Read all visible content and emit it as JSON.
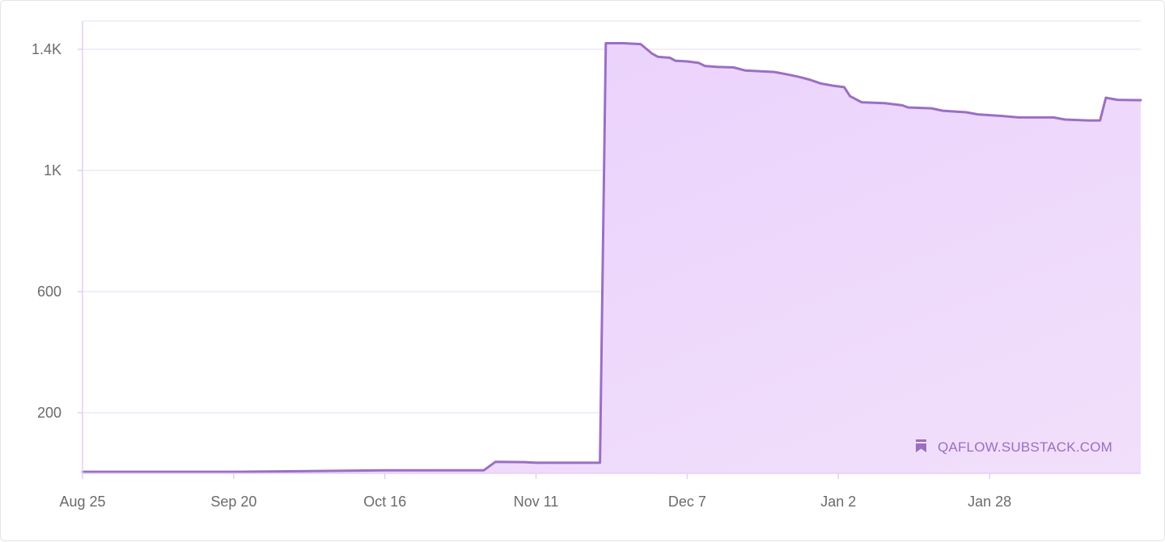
{
  "chart_data": {
    "type": "area",
    "title": "",
    "xlabel": "",
    "ylabel": "",
    "x_ticks": [
      "Aug 25",
      "Sep 20",
      "Oct 16",
      "Nov 11",
      "Dec 7",
      "Jan 2",
      "Jan 28"
    ],
    "y_ticks": [
      {
        "value": 200,
        "label": "200"
      },
      {
        "value": 600,
        "label": "600"
      },
      {
        "value": 1000,
        "label": "1K"
      },
      {
        "value": 1400,
        "label": "1.4K"
      }
    ],
    "xlim": [
      "Aug 25",
      "Feb 23"
    ],
    "ylim": [
      0,
      1490
    ],
    "grid": true,
    "colors": {
      "line": "#9b6fc3",
      "fill": "#ecd5fc",
      "grid": "#f1e6fb",
      "axis": "#e3cff5"
    },
    "series": [
      {
        "points": [
          [
            "Aug 25",
            5
          ],
          [
            "Sep 20",
            5
          ],
          [
            "Oct 6",
            8
          ],
          [
            "Oct 16",
            10
          ],
          [
            "Nov 2",
            10
          ],
          [
            "Nov 4",
            38
          ],
          [
            "Nov 9",
            37
          ],
          [
            "Nov 11",
            35
          ],
          [
            "Nov 22",
            35
          ],
          [
            "Nov 23",
            1420
          ],
          [
            "Nov 26",
            1420
          ],
          [
            "Nov 29",
            1417
          ],
          [
            "Dec 1",
            1385
          ],
          [
            "Dec 2",
            1375
          ],
          [
            "Dec 4",
            1372
          ],
          [
            "Dec 5",
            1362
          ],
          [
            "Dec 7",
            1360
          ],
          [
            "Dec 9",
            1355
          ],
          [
            "Dec 10",
            1345
          ],
          [
            "Dec 12",
            1342
          ],
          [
            "Dec 15",
            1340
          ],
          [
            "Dec 17",
            1330
          ],
          [
            "Dec 22",
            1325
          ],
          [
            "Dec 24",
            1318
          ],
          [
            "Dec 26",
            1310
          ],
          [
            "Dec 28",
            1300
          ],
          [
            "Dec 30",
            1287
          ],
          [
            "Jan 1",
            1280
          ],
          [
            "Jan 3",
            1275
          ],
          [
            "Jan 4",
            1245
          ],
          [
            "Jan 6",
            1225
          ],
          [
            "Jan 10",
            1222
          ],
          [
            "Jan 13",
            1215
          ],
          [
            "Jan 14",
            1208
          ],
          [
            "Jan 18",
            1205
          ],
          [
            "Jan 20",
            1197
          ],
          [
            "Jan 24",
            1192
          ],
          [
            "Jan 26",
            1185
          ],
          [
            "Jan 30",
            1180
          ],
          [
            "Feb 2",
            1175
          ],
          [
            "Feb 8",
            1175
          ],
          [
            "Feb 10",
            1168
          ],
          [
            "Feb 14",
            1165
          ],
          [
            "Feb 16",
            1165
          ],
          [
            "Feb 17",
            1240
          ],
          [
            "Feb 19",
            1233
          ],
          [
            "Feb 23",
            1232
          ]
        ]
      }
    ]
  },
  "watermark": {
    "text": "QAFLOW.SUBSTACK.COM",
    "icon": "bookmark-icon"
  }
}
